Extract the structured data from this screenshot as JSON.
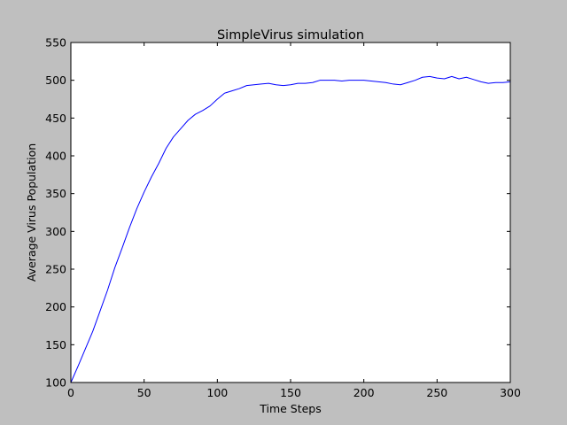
{
  "chart_data": {
    "type": "line",
    "title": "SimpleVirus simulation",
    "xlabel": "Time Steps",
    "ylabel": "Average Virus Population",
    "xlim": [
      0,
      300
    ],
    "ylim": [
      100,
      550
    ],
    "xticks": [
      0,
      50,
      100,
      150,
      200,
      250,
      300
    ],
    "yticks": [
      100,
      150,
      200,
      250,
      300,
      350,
      400,
      450,
      500,
      550
    ],
    "grid": false,
    "legend": "none",
    "series": [
      {
        "color": "#0000ff",
        "x": [
          0,
          5,
          10,
          15,
          20,
          25,
          30,
          35,
          40,
          45,
          50,
          55,
          60,
          65,
          70,
          75,
          80,
          85,
          90,
          95,
          100,
          105,
          110,
          115,
          120,
          125,
          130,
          135,
          140,
          145,
          150,
          155,
          160,
          165,
          170,
          175,
          180,
          185,
          190,
          195,
          200,
          205,
          210,
          215,
          220,
          225,
          230,
          235,
          240,
          245,
          250,
          255,
          260,
          265,
          270,
          275,
          280,
          285,
          290,
          295,
          300
        ],
        "y": [
          100,
          122,
          145,
          168,
          195,
          222,
          252,
          278,
          305,
          330,
          352,
          372,
          390,
          410,
          425,
          436,
          447,
          455,
          460,
          466,
          475,
          483,
          486,
          489,
          493,
          494,
          495,
          496,
          494,
          493,
          494,
          496,
          496,
          497,
          500,
          500,
          500,
          499,
          500,
          500,
          500,
          499,
          498,
          497,
          495,
          494,
          497,
          500,
          504,
          505,
          503,
          502,
          505,
          502,
          504,
          501,
          498,
          496,
          497,
          497,
          498
        ]
      }
    ]
  }
}
